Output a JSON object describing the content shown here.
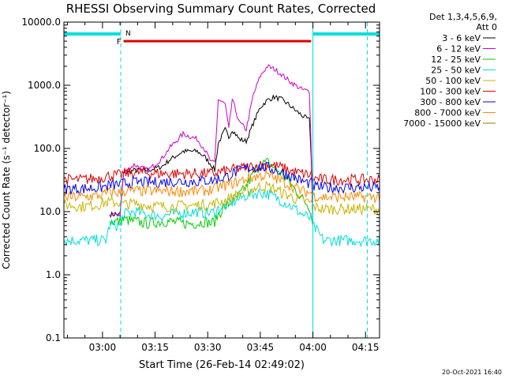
{
  "chart_data": {
    "type": "line",
    "title": "RHESSI Observing Summary Count Rates, Corrected",
    "xlabel": "Start Time (26-Feb-14 02:49:02)",
    "ylabel": "Corrected Count Rate (s⁻¹ detector⁻¹)",
    "y_scale": "log",
    "ylim": [
      0.1,
      10000.0
    ],
    "y_ticks": [
      "10000.0",
      "1000.0",
      "100.0",
      "10.0",
      "1.0",
      "0.1"
    ],
    "x_ticks": [
      "03:00",
      "03:15",
      "03:30",
      "03:45",
      "04:00",
      "04:15"
    ],
    "x_tick_minutes": [
      11,
      26,
      41,
      56,
      71,
      86
    ],
    "x_range_minutes": [
      0,
      90
    ],
    "legend_header": [
      "Det 1,3,4,5,6,9,",
      "Att 0"
    ],
    "legend_position": "right",
    "footer_date": "20-Oct-2021 16:40",
    "markers": {
      "flare_flag_label": "F",
      "night_label": "N"
    },
    "flare_flag": {
      "start_minute": 17,
      "end_minute": 70.5,
      "level": 5000,
      "color": "#e00000"
    },
    "night_bars": [
      {
        "start_minute": 0,
        "end_minute": 16.2,
        "level": 6500
      },
      {
        "start_minute": 71,
        "end_minute": 90,
        "level": 6500
      }
    ],
    "vertical_lines": [
      {
        "minute": 16.2,
        "style": "dashed"
      },
      {
        "minute": 71,
        "style": "solid"
      },
      {
        "minute": 86.5,
        "style": "dashed"
      }
    ],
    "x": [
      0,
      5,
      10,
      12,
      13,
      16,
      17,
      20,
      24,
      28,
      30,
      34,
      38,
      40,
      42,
      43,
      44,
      46,
      47,
      48,
      50,
      52,
      54,
      56,
      58,
      60,
      62,
      64,
      66,
      68,
      70,
      70.5,
      71,
      74,
      78,
      82,
      86,
      90
    ],
    "series": [
      {
        "name": "3 - 6 keV",
        "color": "#000000",
        "values": [
          null,
          null,
          null,
          null,
          9,
          9,
          40,
          45,
          45,
          52,
          65,
          90,
          90,
          75,
          55,
          45,
          120,
          200,
          150,
          200,
          140,
          130,
          250,
          450,
          580,
          650,
          600,
          500,
          400,
          330,
          280,
          80,
          7,
          null,
          null,
          null,
          null,
          null
        ]
      },
      {
        "name": "6 - 12 keV",
        "color": "#cc00cc",
        "values": [
          null,
          null,
          null,
          null,
          9,
          9,
          40,
          55,
          45,
          70,
          100,
          170,
          140,
          100,
          60,
          60,
          600,
          500,
          200,
          600,
          260,
          200,
          700,
          1400,
          2000,
          1800,
          1500,
          1200,
          1000,
          850,
          800,
          120,
          9,
          null,
          null,
          null,
          null,
          null
        ]
      },
      {
        "name": "12 - 25 keV",
        "color": "#00cc00",
        "values": [
          null,
          null,
          null,
          null,
          7,
          7,
          7.5,
          7,
          6.5,
          7,
          7,
          6.5,
          6.5,
          7,
          6.5,
          7,
          9,
          12,
          13,
          15,
          18,
          25,
          40,
          55,
          60,
          50,
          40,
          30,
          22,
          16,
          12,
          10,
          6,
          null,
          null,
          null,
          null,
          null
        ]
      },
      {
        "name": "25 - 50 keV",
        "color": "#00dddd",
        "values": [
          3.5,
          3.5,
          3.5,
          3.5,
          6,
          6,
          9,
          10,
          9,
          8.5,
          9,
          9.5,
          10,
          9.5,
          9.5,
          10,
          11,
          12.5,
          13,
          14,
          16,
          18,
          19,
          20,
          19,
          17,
          15,
          13,
          11,
          9,
          8,
          7.5,
          6,
          3.5,
          3.5,
          3.5,
          3.5,
          3.5
        ]
      },
      {
        "name": "50 - 100 keV",
        "color": "#c8b400",
        "values": [
          13,
          12,
          13,
          14,
          14,
          14,
          13,
          13.5,
          12.5,
          12,
          12,
          12.5,
          12.5,
          13,
          13,
          13.5,
          14,
          15,
          16,
          17,
          19,
          21,
          23,
          25,
          25,
          23,
          20,
          18,
          16,
          15,
          14,
          14,
          12,
          11,
          11,
          11,
          11,
          11
        ]
      },
      {
        "name": "100 - 300 keV",
        "color": "#dd0000",
        "values": [
          32,
          32,
          34,
          36,
          37,
          38,
          40,
          42,
          41,
          40,
          40,
          40,
          40,
          40,
          40,
          40,
          42,
          44,
          45,
          46,
          48,
          50,
          52,
          54,
          55,
          53,
          50,
          45,
          42,
          40,
          38,
          38,
          34,
          32,
          32,
          32,
          32,
          32
        ]
      },
      {
        "name": "300 - 800 keV",
        "color": "#0000ee",
        "values": [
          23,
          23,
          24,
          25,
          26,
          27,
          28,
          29,
          29,
          29,
          30,
          30,
          30,
          31,
          31,
          32,
          33,
          35,
          37,
          40,
          44,
          48,
          50,
          51,
          50,
          46,
          42,
          38,
          34,
          30,
          28,
          28,
          25,
          24,
          24,
          24,
          24,
          24
        ]
      },
      {
        "name": "800 - 7000 keV",
        "color": "#ff8800",
        "values": [
          17,
          17,
          18,
          19,
          20,
          20,
          21,
          21.5,
          21,
          21,
          21,
          21,
          21,
          21.5,
          22,
          23,
          24,
          26,
          27,
          28,
          30,
          33,
          35,
          37,
          37,
          34,
          31,
          27,
          24,
          21,
          20,
          20,
          18,
          17,
          17,
          17,
          17,
          17
        ]
      },
      {
        "name": "7000 - 15000 keV",
        "color": "#8a7a00",
        "values": [
          null,
          null,
          null,
          null,
          null,
          null,
          null,
          null,
          null,
          null,
          null,
          null,
          null,
          null,
          null,
          null,
          null,
          null,
          null,
          null,
          null,
          null,
          null,
          null,
          null,
          null,
          null,
          null,
          null,
          null,
          null,
          null,
          null,
          null,
          null,
          null,
          null,
          null
        ]
      }
    ]
  }
}
